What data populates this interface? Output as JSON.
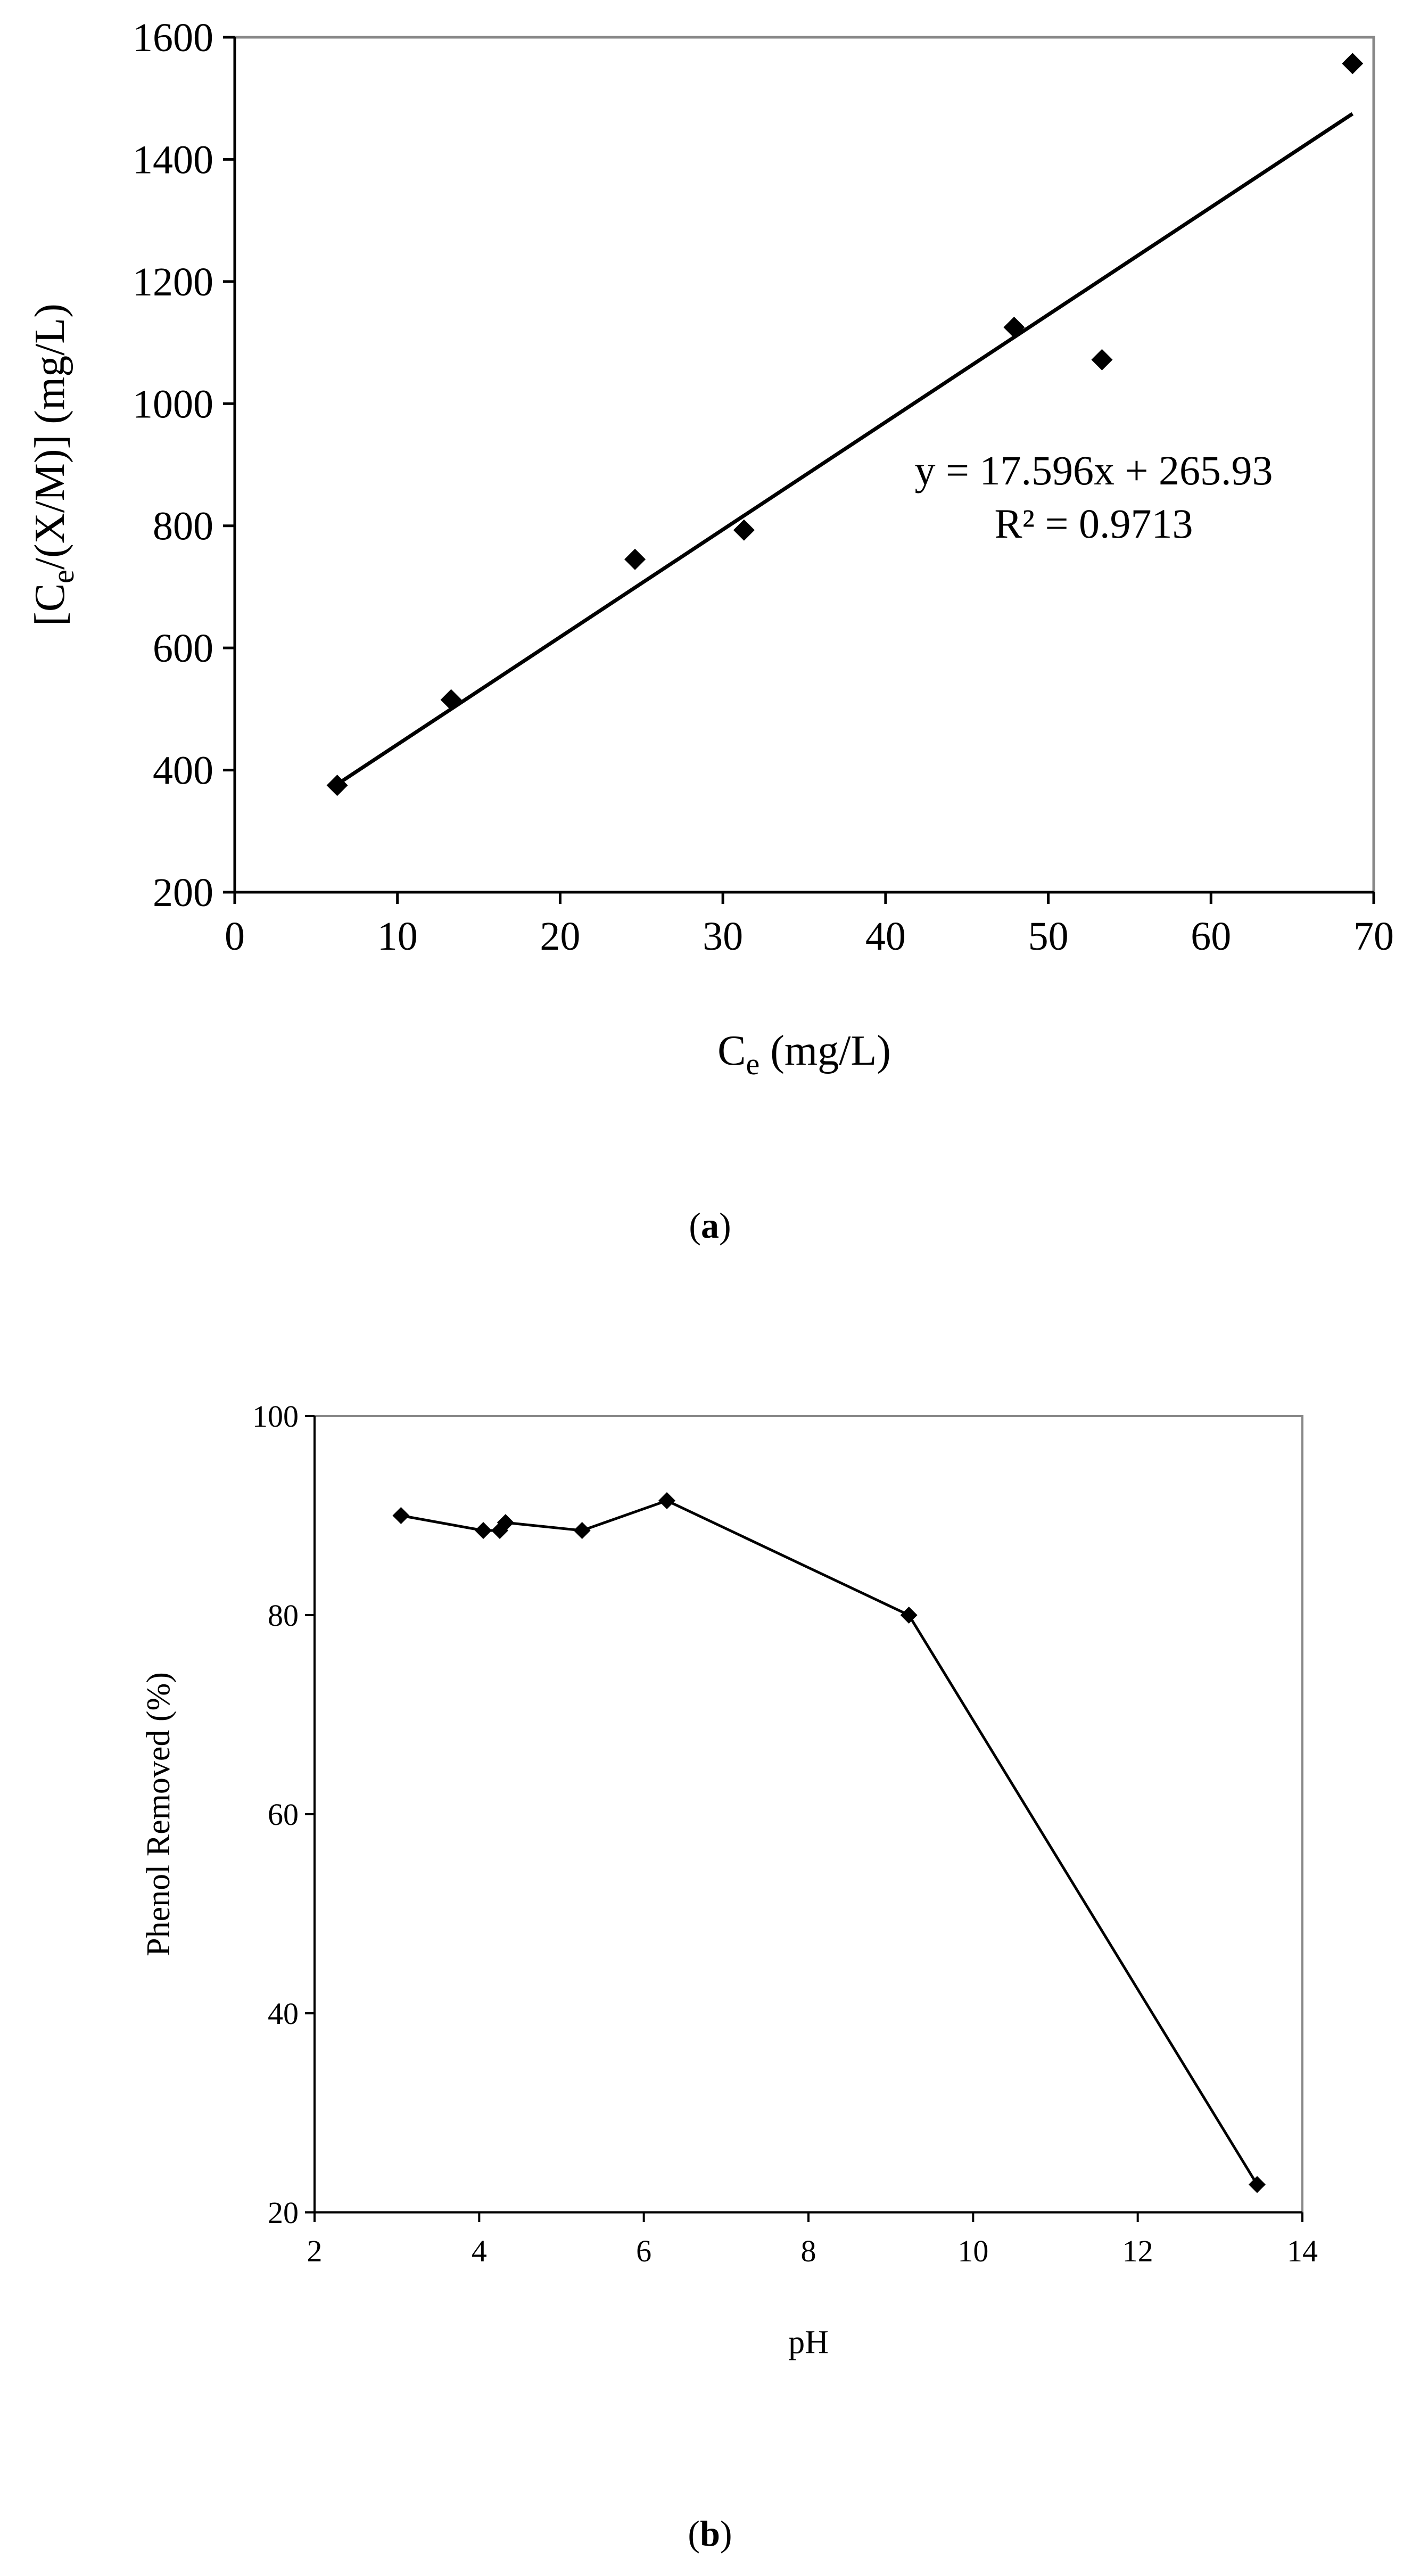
{
  "chart_data": [
    {
      "type": "scatter",
      "panel_label_open": "(",
      "panel_label_letter": "a",
      "panel_label_close": ")",
      "xlabel_main": "C",
      "xlabel_sub": "e",
      "xlabel_rest": " (mg/L)",
      "ylabel_pre": "[C",
      "ylabel_sub": "e",
      "ylabel_rest": "/(X/M)] (mg/L)",
      "xlim": [
        0,
        70
      ],
      "ylim": [
        200,
        1600
      ],
      "x_ticks": [
        0,
        10,
        20,
        30,
        40,
        50,
        60,
        70
      ],
      "y_ticks": [
        200,
        400,
        600,
        800,
        1000,
        1200,
        1400,
        1600
      ],
      "grid": false,
      "legend": "none",
      "series": [
        {
          "name": "data",
          "marker": "diamond",
          "x": [
            6.3,
            13.3,
            24.6,
            31.3,
            47.9,
            53.3,
            68.7
          ],
          "y": [
            375,
            515,
            745,
            793,
            1125,
            1072,
            1557
          ]
        }
      ],
      "trendline": {
        "type": "linear",
        "slope": 17.596,
        "intercept": 265.93,
        "x_range": [
          6.3,
          68.7
        ],
        "equation_label": "y = 17.596x + 265.93",
        "r2_label": "R² = 0.9713"
      }
    },
    {
      "type": "line",
      "panel_label_open": "(",
      "panel_label_letter": "b",
      "panel_label_close": ")",
      "xlabel": "pH",
      "ylabel": "Phenol Removed (%)",
      "xlim": [
        2,
        14
      ],
      "ylim": [
        20,
        100
      ],
      "x_ticks": [
        2,
        4,
        6,
        8,
        10,
        12,
        14
      ],
      "y_ticks": [
        20,
        40,
        60,
        80,
        100
      ],
      "grid": false,
      "legend": "none",
      "series": [
        {
          "name": "data",
          "marker": "diamond",
          "x": [
            3.05,
            4.05,
            4.25,
            4.32,
            5.25,
            6.28,
            9.22,
            13.45
          ],
          "y": [
            90.0,
            88.5,
            88.5,
            89.3,
            88.5,
            91.5,
            80.0,
            22.8
          ]
        }
      ]
    }
  ]
}
